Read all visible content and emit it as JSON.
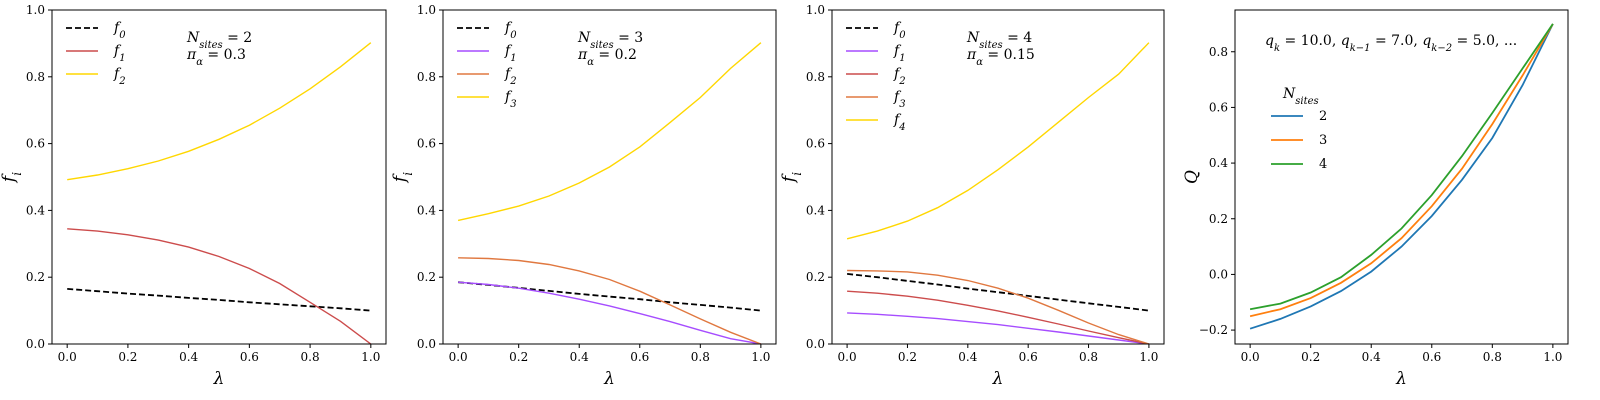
{
  "chart_data": [
    {
      "type": "line",
      "xlabel": "λ",
      "ylabel": "f",
      "ylabel_sub": "i",
      "xlim": [
        -0.05,
        1.05
      ],
      "ylim": [
        0.0,
        1.0
      ],
      "xticks": [
        "0.0",
        "0.2",
        "0.4",
        "0.6",
        "0.8",
        "1.0"
      ],
      "yticks": [
        "0.0",
        "0.2",
        "0.4",
        "0.6",
        "0.8",
        "1.0"
      ],
      "legend_position": "top-left",
      "annotation": [
        {
          "main": "N",
          "sub": "sites",
          "rest": " = 2"
        },
        {
          "main": "π",
          "sub": "α",
          "rest": " = 0.3"
        }
      ],
      "x": [
        0.0,
        0.1,
        0.2,
        0.3,
        0.4,
        0.5,
        0.6,
        0.7,
        0.8,
        0.9,
        1.0
      ],
      "series": [
        {
          "name": "f",
          "sub": "0",
          "color": "#000000",
          "dash": true,
          "values": [
            0.165,
            0.158,
            0.151,
            0.145,
            0.138,
            0.132,
            0.125,
            0.119,
            0.113,
            0.107,
            0.1
          ]
        },
        {
          "name": "f",
          "sub": "1",
          "color": "#cc4c4c",
          "dash": false,
          "values": [
            0.345,
            0.338,
            0.327,
            0.311,
            0.29,
            0.262,
            0.226,
            0.181,
            0.125,
            0.068,
            0.0
          ]
        },
        {
          "name": "f",
          "sub": "2",
          "color": "#ffd700",
          "dash": false,
          "values": [
            0.492,
            0.506,
            0.525,
            0.548,
            0.577,
            0.613,
            0.655,
            0.706,
            0.764,
            0.83,
            0.902
          ]
        }
      ]
    },
    {
      "type": "line",
      "xlabel": "λ",
      "ylabel": "f",
      "ylabel_sub": "i",
      "xlim": [
        -0.05,
        1.05
      ],
      "ylim": [
        0.0,
        1.0
      ],
      "xticks": [
        "0.0",
        "0.2",
        "0.4",
        "0.6",
        "0.8",
        "1.0"
      ],
      "yticks": [
        "0.0",
        "0.2",
        "0.4",
        "0.6",
        "0.8",
        "1.0"
      ],
      "legend_position": "top-left",
      "annotation": [
        {
          "main": "N",
          "sub": "sites",
          "rest": " = 3"
        },
        {
          "main": "π",
          "sub": "α",
          "rest": " = 0.2"
        }
      ],
      "x": [
        0.0,
        0.1,
        0.2,
        0.3,
        0.4,
        0.5,
        0.6,
        0.7,
        0.8,
        0.9,
        1.0
      ],
      "series": [
        {
          "name": "f",
          "sub": "0",
          "color": "#000000",
          "dash": true,
          "values": [
            0.185,
            0.177,
            0.168,
            0.159,
            0.15,
            0.142,
            0.134,
            0.125,
            0.117,
            0.109,
            0.1
          ]
        },
        {
          "name": "f",
          "sub": "1",
          "color": "#a64dff",
          "dash": false,
          "values": [
            0.185,
            0.178,
            0.167,
            0.152,
            0.134,
            0.114,
            0.091,
            0.067,
            0.041,
            0.016,
            0.0
          ]
        },
        {
          "name": "f",
          "sub": "2",
          "color": "#e07840",
          "dash": false,
          "values": [
            0.258,
            0.256,
            0.25,
            0.238,
            0.219,
            0.193,
            0.158,
            0.117,
            0.075,
            0.035,
            0.0
          ]
        },
        {
          "name": "f",
          "sub": "3",
          "color": "#ffd700",
          "dash": false,
          "values": [
            0.37,
            0.39,
            0.413,
            0.443,
            0.482,
            0.53,
            0.59,
            0.663,
            0.738,
            0.825,
            0.902
          ]
        }
      ]
    },
    {
      "type": "line",
      "xlabel": "λ",
      "ylabel": "f",
      "ylabel_sub": "i",
      "xlim": [
        -0.05,
        1.05
      ],
      "ylim": [
        0.0,
        1.0
      ],
      "xticks": [
        "0.0",
        "0.2",
        "0.4",
        "0.6",
        "0.8",
        "1.0"
      ],
      "yticks": [
        "0.0",
        "0.2",
        "0.4",
        "0.6",
        "0.8",
        "1.0"
      ],
      "legend_position": "top-left",
      "annotation": [
        {
          "main": "N",
          "sub": "sites",
          "rest": " = 4"
        },
        {
          "main": "π",
          "sub": "α",
          "rest": " = 0.15"
        }
      ],
      "x": [
        0.0,
        0.1,
        0.2,
        0.3,
        0.4,
        0.5,
        0.6,
        0.7,
        0.8,
        0.9,
        1.0
      ],
      "series": [
        {
          "name": "f",
          "sub": "0",
          "color": "#000000",
          "dash": true,
          "values": [
            0.21,
            0.2,
            0.189,
            0.178,
            0.166,
            0.155,
            0.144,
            0.133,
            0.122,
            0.111,
            0.1
          ]
        },
        {
          "name": "f",
          "sub": "1",
          "color": "#a64dff",
          "dash": false,
          "values": [
            0.093,
            0.089,
            0.083,
            0.076,
            0.067,
            0.058,
            0.047,
            0.036,
            0.024,
            0.012,
            0.0
          ]
        },
        {
          "name": "f",
          "sub": "2",
          "color": "#cc4c4c",
          "dash": false,
          "values": [
            0.158,
            0.152,
            0.143,
            0.131,
            0.116,
            0.099,
            0.08,
            0.06,
            0.039,
            0.019,
            0.0
          ]
        },
        {
          "name": "f",
          "sub": "3",
          "color": "#e07840",
          "dash": false,
          "values": [
            0.22,
            0.219,
            0.216,
            0.206,
            0.19,
            0.167,
            0.137,
            0.101,
            0.063,
            0.028,
            0.0
          ]
        },
        {
          "name": "f",
          "sub": "4",
          "color": "#ffd700",
          "dash": false,
          "values": [
            0.315,
            0.338,
            0.368,
            0.408,
            0.46,
            0.522,
            0.59,
            0.664,
            0.738,
            0.808,
            0.902
          ]
        }
      ]
    },
    {
      "type": "line",
      "xlabel": "λ",
      "ylabel": "Q",
      "ylabel_sub": "",
      "xlim": [
        -0.05,
        1.05
      ],
      "ylim": [
        -0.25,
        0.95
      ],
      "xticks": [
        "0.0",
        "0.2",
        "0.4",
        "0.6",
        "0.8",
        "1.0"
      ],
      "yticks": [
        "−0.2",
        "0.0",
        "0.2",
        "0.4",
        "0.6",
        "0.8"
      ],
      "ytick_values": [
        -0.2,
        0.0,
        0.2,
        0.4,
        0.6,
        0.8
      ],
      "legend_position": "center-left",
      "legend_title": {
        "main": "N",
        "sub": "sites"
      },
      "annotation_text": "q_k = 10.0, q_k−1 = 7.0, q_k−2 = 5.0, ...",
      "x": [
        0.0,
        0.1,
        0.2,
        0.3,
        0.4,
        0.5,
        0.6,
        0.7,
        0.8,
        0.9,
        1.0
      ],
      "series": [
        {
          "name": "2",
          "color": "#1f77b4",
          "dash": false,
          "values": [
            -0.195,
            -0.16,
            -0.115,
            -0.06,
            0.01,
            0.1,
            0.21,
            0.34,
            0.49,
            0.68,
            0.9
          ]
        },
        {
          "name": "3",
          "color": "#ff7f0e",
          "dash": false,
          "values": [
            -0.15,
            -0.125,
            -0.085,
            -0.03,
            0.04,
            0.13,
            0.245,
            0.38,
            0.54,
            0.715,
            0.9
          ]
        },
        {
          "name": "4",
          "color": "#2ca02c",
          "dash": false,
          "values": [
            -0.125,
            -0.105,
            -0.065,
            -0.01,
            0.07,
            0.165,
            0.285,
            0.425,
            0.58,
            0.74,
            0.9
          ]
        }
      ]
    }
  ]
}
